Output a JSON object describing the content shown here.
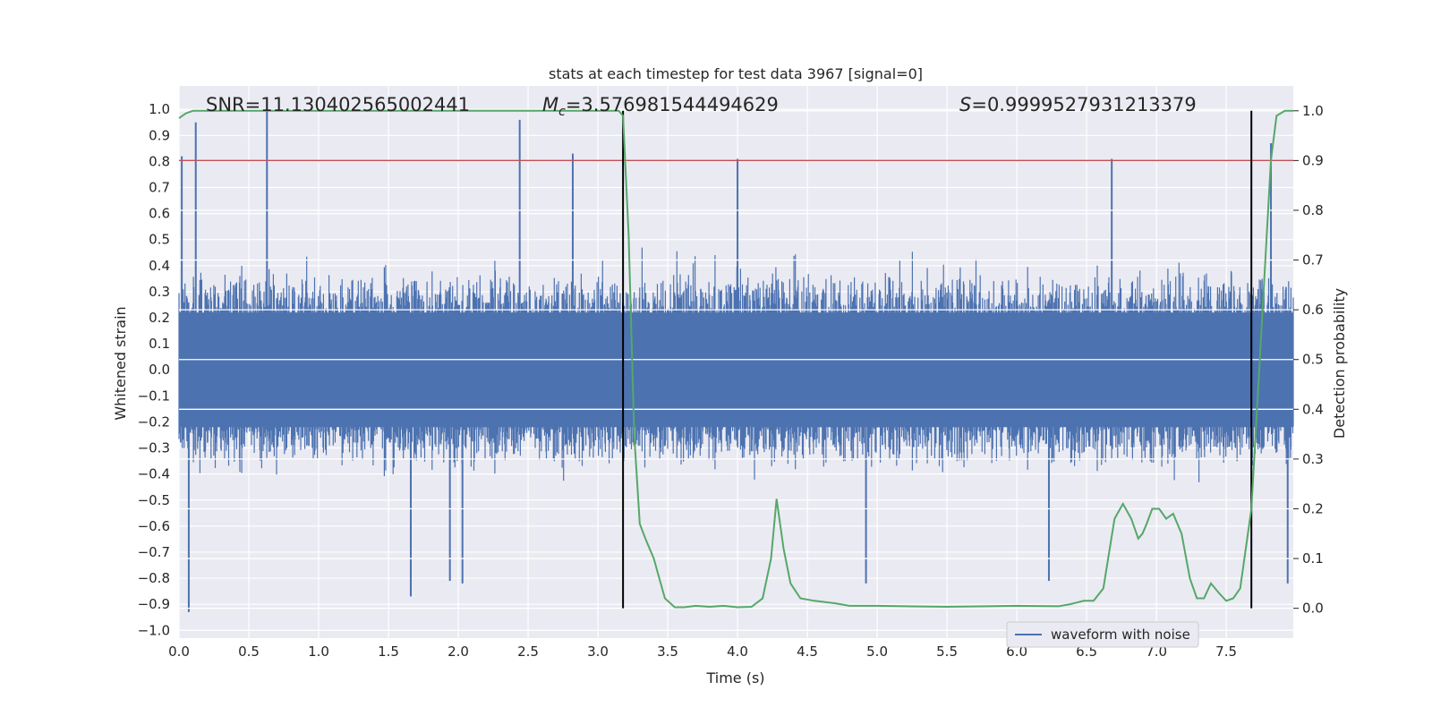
{
  "chart_data": {
    "type": "line",
    "title": "stats at each timestep for test data 3967 [signal=0]",
    "annotations": {
      "snr": "SNR=11.130402565002441",
      "mc_symbol": "M",
      "mc_subscript": "c",
      "mc_value": "=3.576981544494629",
      "s_symbol": "S",
      "s_value": "=0.9999527931213379"
    },
    "xlabel": "Time (s)",
    "ylabel_left": "Whitened strain",
    "ylabel_right": "Detection probability",
    "xlim": [
      0.0,
      7.98
    ],
    "ylim_left": [
      -1.03,
      1.09
    ],
    "ylim_right": [
      -0.06,
      1.05
    ],
    "xticks": [
      "0.0",
      "0.5",
      "1.0",
      "1.5",
      "2.0",
      "2.5",
      "3.0",
      "3.5",
      "4.0",
      "4.5",
      "5.0",
      "5.5",
      "6.0",
      "6.5",
      "7.0",
      "7.5"
    ],
    "yticks_left": [
      "1.0",
      "0.9",
      "0.8",
      "0.7",
      "0.6",
      "0.5",
      "0.4",
      "0.3",
      "0.2",
      "0.1",
      "0.0",
      "−0.1",
      "−0.2",
      "−0.3",
      "−0.4",
      "−0.5",
      "−0.6",
      "−0.7",
      "−0.8",
      "−0.9",
      "−1.0"
    ],
    "yticks_right": [
      "1.0",
      "0.9",
      "0.8",
      "0.7",
      "0.6",
      "0.5",
      "0.4",
      "0.3",
      "0.2",
      "0.1",
      "0.0"
    ],
    "threshold": {
      "value": 0.9,
      "axis": "right",
      "color": "#c44e52"
    },
    "vlines": [
      {
        "x": 3.18,
        "color": "#000000"
      },
      {
        "x": 7.68,
        "color": "#000000"
      }
    ],
    "series": [
      {
        "name": "waveform with noise",
        "axis": "left",
        "color": "#4c72b0",
        "description": "dense noisy whitened strain, envelope mostly within ±0.6",
        "peaks": [
          {
            "x": 0.02,
            "y": 0.82
          },
          {
            "x": 0.12,
            "y": 0.95
          },
          {
            "x": 0.63,
            "y": 1.0
          },
          {
            "x": 2.44,
            "y": 0.96
          },
          {
            "x": 2.82,
            "y": 0.83
          },
          {
            "x": 4.0,
            "y": 0.81
          },
          {
            "x": 6.68,
            "y": 0.81
          },
          {
            "x": 7.82,
            "y": 0.87
          },
          {
            "x": 0.07,
            "y": -0.93
          },
          {
            "x": 1.66,
            "y": -0.87
          },
          {
            "x": 1.94,
            "y": -0.81
          },
          {
            "x": 2.03,
            "y": -0.82
          },
          {
            "x": 4.92,
            "y": -0.82
          },
          {
            "x": 6.23,
            "y": -0.81
          },
          {
            "x": 7.94,
            "y": -0.82
          }
        ]
      },
      {
        "name": "",
        "axis": "right",
        "color": "#55a868",
        "x": [
          0.0,
          0.05,
          0.1,
          0.5,
          1.0,
          1.5,
          2.0,
          2.5,
          3.0,
          3.15,
          3.18,
          3.22,
          3.26,
          3.3,
          3.34,
          3.4,
          3.48,
          3.55,
          3.62,
          3.7,
          3.8,
          3.9,
          4.0,
          4.1,
          4.18,
          4.24,
          4.28,
          4.33,
          4.38,
          4.45,
          4.55,
          4.7,
          4.8,
          5.0,
          5.2,
          5.5,
          5.8,
          6.0,
          6.3,
          6.38,
          6.48,
          6.55,
          6.62,
          6.7,
          6.76,
          6.82,
          6.87,
          6.9,
          6.93,
          6.97,
          7.02,
          7.07,
          7.12,
          7.18,
          7.24,
          7.29,
          7.34,
          7.39,
          7.45,
          7.5,
          7.55,
          7.6,
          7.68,
          7.74,
          7.78,
          7.82,
          7.86,
          7.92,
          7.98
        ],
        "y": [
          0.985,
          0.995,
          1.0,
          1.0,
          1.0,
          1.0,
          1.0,
          1.0,
          1.0,
          1.0,
          0.99,
          0.75,
          0.35,
          0.17,
          0.14,
          0.1,
          0.02,
          0.002,
          0.002,
          0.005,
          0.003,
          0.005,
          0.002,
          0.003,
          0.02,
          0.1,
          0.22,
          0.12,
          0.05,
          0.02,
          0.015,
          0.01,
          0.005,
          0.005,
          0.004,
          0.003,
          0.004,
          0.005,
          0.004,
          0.008,
          0.015,
          0.015,
          0.04,
          0.18,
          0.21,
          0.18,
          0.14,
          0.15,
          0.17,
          0.2,
          0.2,
          0.18,
          0.19,
          0.15,
          0.06,
          0.02,
          0.02,
          0.05,
          0.03,
          0.015,
          0.02,
          0.04,
          0.2,
          0.5,
          0.7,
          0.9,
          0.99,
          1.0,
          1.0
        ]
      }
    ],
    "legend": {
      "placement": "lower-right",
      "entries": [
        "waveform with noise"
      ]
    },
    "grid": true,
    "colors": {
      "background": "#eaeaf2",
      "grid": "#ffffff"
    }
  }
}
